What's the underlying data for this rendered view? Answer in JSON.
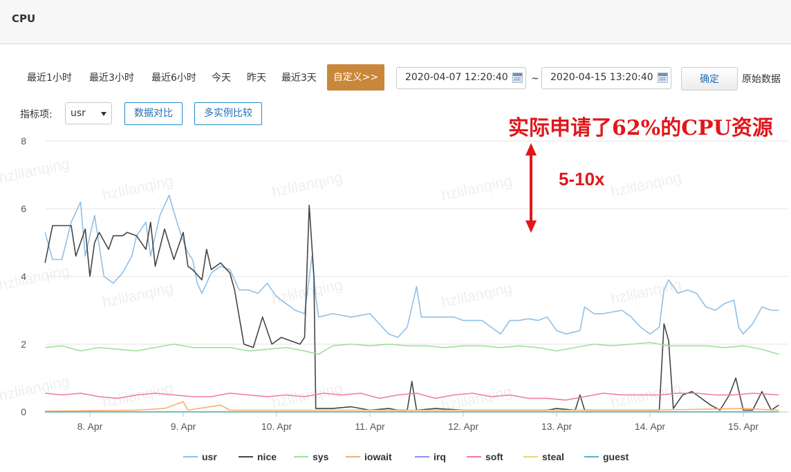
{
  "header": {
    "title": "CPU"
  },
  "toolbar": {
    "ranges": [
      "最近1小时",
      "最近3小时",
      "最近6小时",
      "今天",
      "昨天",
      "最近3天"
    ],
    "custom_label": "自定义>>",
    "start_date": "2020-04-07 12:20:40",
    "end_date": "2020-04-15 13:20:40",
    "separator": "~",
    "confirm_label": "确定",
    "raw_data_label": "原始数据"
  },
  "metric_bar": {
    "label": "指标项:",
    "selected": "usr",
    "compare_data_label": "数据对比",
    "compare_instances_label": "多实例比较"
  },
  "annotation": {
    "text": "实际申请了62%的CPU资源",
    "multiplier": "5-10x",
    "color": "#e0161a"
  },
  "watermark": "hzlilanqing",
  "chart_data": {
    "type": "line",
    "y_ticks": [
      "0",
      "2",
      "4",
      "6",
      "8"
    ],
    "ylim": [
      0,
      8
    ],
    "x_ticks": [
      "8. Apr",
      "9. Apr",
      "10. Apr",
      "11. Apr",
      "12. Apr",
      "13. Apr",
      "14. Apr",
      "15. Apr"
    ],
    "x_range_days": [
      "2020-04-07 12:20",
      "2020-04-15 13:20"
    ],
    "grid": true,
    "legend_position": "bottom",
    "series": [
      {
        "name": "usr",
        "color": "#8fbfe6",
        "points": [
          [
            7.52,
            5.3
          ],
          [
            7.6,
            4.5
          ],
          [
            7.7,
            4.5
          ],
          [
            7.8,
            5.6
          ],
          [
            7.9,
            6.2
          ],
          [
            7.95,
            4.6
          ],
          [
            8.05,
            5.8
          ],
          [
            8.15,
            4.0
          ],
          [
            8.25,
            3.8
          ],
          [
            8.35,
            4.1
          ],
          [
            8.45,
            4.6
          ],
          [
            8.5,
            5.2
          ],
          [
            8.6,
            5.6
          ],
          [
            8.65,
            4.6
          ],
          [
            8.75,
            5.8
          ],
          [
            8.8,
            6.1
          ],
          [
            8.85,
            6.4
          ],
          [
            8.9,
            5.9
          ],
          [
            8.98,
            5.2
          ],
          [
            9.05,
            4.7
          ],
          [
            9.1,
            4.5
          ],
          [
            9.15,
            3.8
          ],
          [
            9.2,
            3.5
          ],
          [
            9.3,
            4.1
          ],
          [
            9.4,
            4.3
          ],
          [
            9.5,
            4.2
          ],
          [
            9.6,
            3.6
          ],
          [
            9.7,
            3.6
          ],
          [
            9.8,
            3.5
          ],
          [
            9.9,
            3.8
          ],
          [
            10.0,
            3.4
          ],
          [
            10.1,
            3.2
          ],
          [
            10.2,
            3.0
          ],
          [
            10.3,
            2.9
          ],
          [
            10.38,
            4.6
          ],
          [
            10.42,
            3.4
          ],
          [
            10.45,
            2.8
          ],
          [
            10.6,
            2.9
          ],
          [
            10.8,
            2.8
          ],
          [
            11.0,
            2.9
          ],
          [
            11.1,
            2.6
          ],
          [
            11.2,
            2.3
          ],
          [
            11.3,
            2.2
          ],
          [
            11.4,
            2.5
          ],
          [
            11.5,
            3.7
          ],
          [
            11.55,
            2.8
          ],
          [
            11.7,
            2.8
          ],
          [
            11.9,
            2.8
          ],
          [
            12.0,
            2.7
          ],
          [
            12.2,
            2.7
          ],
          [
            12.3,
            2.5
          ],
          [
            12.4,
            2.3
          ],
          [
            12.5,
            2.7
          ],
          [
            12.6,
            2.7
          ],
          [
            12.7,
            2.75
          ],
          [
            12.8,
            2.7
          ],
          [
            12.9,
            2.8
          ],
          [
            13.0,
            2.4
          ],
          [
            13.1,
            2.3
          ],
          [
            13.25,
            2.4
          ],
          [
            13.3,
            3.1
          ],
          [
            13.4,
            2.9
          ],
          [
            13.5,
            2.9
          ],
          [
            13.7,
            3.0
          ],
          [
            13.8,
            2.8
          ],
          [
            13.9,
            2.5
          ],
          [
            14.0,
            2.3
          ],
          [
            14.1,
            2.5
          ],
          [
            14.15,
            3.6
          ],
          [
            14.2,
            3.9
          ],
          [
            14.3,
            3.5
          ],
          [
            14.4,
            3.6
          ],
          [
            14.5,
            3.5
          ],
          [
            14.6,
            3.1
          ],
          [
            14.7,
            3.0
          ],
          [
            14.8,
            3.2
          ],
          [
            14.9,
            3.3
          ],
          [
            14.95,
            2.5
          ],
          [
            15.0,
            2.3
          ],
          [
            15.1,
            2.6
          ],
          [
            15.2,
            3.1
          ],
          [
            15.3,
            3.0
          ],
          [
            15.38,
            3.0
          ]
        ]
      },
      {
        "name": "nice",
        "color": "#444444",
        "points": [
          [
            7.52,
            4.4
          ],
          [
            7.6,
            5.5
          ],
          [
            7.7,
            5.5
          ],
          [
            7.8,
            5.5
          ],
          [
            7.85,
            4.6
          ],
          [
            7.95,
            5.4
          ],
          [
            8.0,
            4.0
          ],
          [
            8.05,
            5.0
          ],
          [
            8.1,
            5.3
          ],
          [
            8.2,
            4.8
          ],
          [
            8.25,
            5.2
          ],
          [
            8.35,
            5.2
          ],
          [
            8.4,
            5.3
          ],
          [
            8.5,
            5.2
          ],
          [
            8.6,
            4.8
          ],
          [
            8.65,
            5.6
          ],
          [
            8.7,
            4.3
          ],
          [
            8.8,
            5.4
          ],
          [
            8.9,
            4.5
          ],
          [
            9.0,
            5.3
          ],
          [
            9.05,
            4.3
          ],
          [
            9.1,
            4.2
          ],
          [
            9.2,
            3.9
          ],
          [
            9.25,
            4.8
          ],
          [
            9.3,
            4.2
          ],
          [
            9.4,
            4.4
          ],
          [
            9.5,
            4.1
          ],
          [
            9.55,
            3.6
          ],
          [
            9.6,
            2.8
          ],
          [
            9.65,
            2.0
          ],
          [
            9.75,
            1.9
          ],
          [
            9.85,
            2.8
          ],
          [
            9.95,
            2.0
          ],
          [
            10.05,
            2.2
          ],
          [
            10.15,
            2.1
          ],
          [
            10.25,
            2.0
          ],
          [
            10.3,
            2.2
          ],
          [
            10.35,
            6.1
          ],
          [
            10.4,
            4.0
          ],
          [
            10.42,
            0.1
          ],
          [
            10.6,
            0.1
          ],
          [
            10.8,
            0.15
          ],
          [
            11.0,
            0.05
          ],
          [
            11.2,
            0.1
          ],
          [
            11.3,
            0.05
          ],
          [
            11.4,
            0.05
          ],
          [
            11.45,
            0.9
          ],
          [
            11.5,
            0.05
          ],
          [
            11.7,
            0.1
          ],
          [
            12.0,
            0.05
          ],
          [
            12.3,
            0.05
          ],
          [
            12.6,
            0.05
          ],
          [
            12.9,
            0.05
          ],
          [
            13.0,
            0.1
          ],
          [
            13.2,
            0.05
          ],
          [
            13.25,
            0.5
          ],
          [
            13.3,
            0.05
          ],
          [
            13.6,
            0.05
          ],
          [
            13.9,
            0.05
          ],
          [
            14.0,
            0.05
          ],
          [
            14.1,
            0.05
          ],
          [
            14.15,
            2.6
          ],
          [
            14.2,
            2.1
          ],
          [
            14.25,
            0.1
          ],
          [
            14.35,
            0.5
          ],
          [
            14.45,
            0.6
          ],
          [
            14.55,
            0.4
          ],
          [
            14.65,
            0.2
          ],
          [
            14.75,
            0.05
          ],
          [
            14.85,
            0.5
          ],
          [
            14.92,
            1.0
          ],
          [
            15.0,
            0.05
          ],
          [
            15.1,
            0.05
          ],
          [
            15.2,
            0.6
          ],
          [
            15.3,
            0.05
          ],
          [
            15.38,
            0.2
          ]
        ]
      },
      {
        "name": "sys",
        "color": "#9ee09e",
        "points": [
          [
            7.52,
            1.9
          ],
          [
            7.7,
            1.95
          ],
          [
            7.9,
            1.8
          ],
          [
            8.1,
            1.9
          ],
          [
            8.3,
            1.85
          ],
          [
            8.5,
            1.8
          ],
          [
            8.7,
            1.9
          ],
          [
            8.9,
            2.0
          ],
          [
            9.1,
            1.9
          ],
          [
            9.3,
            1.9
          ],
          [
            9.5,
            1.9
          ],
          [
            9.7,
            1.8
          ],
          [
            9.9,
            1.85
          ],
          [
            10.1,
            1.9
          ],
          [
            10.3,
            1.8
          ],
          [
            10.45,
            1.7
          ],
          [
            10.6,
            1.95
          ],
          [
            10.8,
            2.0
          ],
          [
            11.0,
            1.95
          ],
          [
            11.2,
            2.0
          ],
          [
            11.4,
            1.95
          ],
          [
            11.6,
            1.95
          ],
          [
            11.8,
            1.9
          ],
          [
            12.0,
            1.95
          ],
          [
            12.2,
            1.95
          ],
          [
            12.4,
            1.9
          ],
          [
            12.6,
            1.95
          ],
          [
            12.8,
            1.9
          ],
          [
            13.0,
            1.8
          ],
          [
            13.2,
            1.9
          ],
          [
            13.4,
            2.0
          ],
          [
            13.6,
            1.95
          ],
          [
            13.8,
            2.0
          ],
          [
            14.0,
            2.05
          ],
          [
            14.2,
            1.95
          ],
          [
            14.4,
            1.95
          ],
          [
            14.6,
            1.95
          ],
          [
            14.8,
            1.9
          ],
          [
            15.0,
            1.95
          ],
          [
            15.2,
            1.85
          ],
          [
            15.38,
            1.7
          ]
        ]
      },
      {
        "name": "iowait",
        "color": "#f5b06a",
        "points": [
          [
            7.52,
            0.02
          ],
          [
            8.5,
            0.05
          ],
          [
            8.8,
            0.1
          ],
          [
            9.0,
            0.3
          ],
          [
            9.05,
            0.05
          ],
          [
            9.4,
            0.2
          ],
          [
            9.5,
            0.05
          ],
          [
            10.0,
            0.05
          ],
          [
            11.0,
            0.05
          ],
          [
            12.0,
            0.05
          ],
          [
            13.0,
            0.05
          ],
          [
            14.0,
            0.05
          ],
          [
            15.0,
            0.1
          ],
          [
            15.38,
            0.05
          ]
        ]
      },
      {
        "name": "irq",
        "color": "#8c8cf0",
        "points": [
          [
            7.52,
            0.0
          ],
          [
            15.38,
            0.0
          ]
        ]
      },
      {
        "name": "soft",
        "color": "#f07aa0",
        "points": [
          [
            7.52,
            0.55
          ],
          [
            7.7,
            0.5
          ],
          [
            7.9,
            0.55
          ],
          [
            8.1,
            0.45
          ],
          [
            8.3,
            0.4
          ],
          [
            8.5,
            0.5
          ],
          [
            8.7,
            0.55
          ],
          [
            8.9,
            0.5
          ],
          [
            9.1,
            0.45
          ],
          [
            9.3,
            0.45
          ],
          [
            9.5,
            0.55
          ],
          [
            9.7,
            0.5
          ],
          [
            9.9,
            0.45
          ],
          [
            10.1,
            0.5
          ],
          [
            10.3,
            0.45
          ],
          [
            10.5,
            0.55
          ],
          [
            10.7,
            0.5
          ],
          [
            10.9,
            0.55
          ],
          [
            11.1,
            0.4
          ],
          [
            11.3,
            0.5
          ],
          [
            11.5,
            0.55
          ],
          [
            11.7,
            0.4
          ],
          [
            11.9,
            0.5
          ],
          [
            12.1,
            0.55
          ],
          [
            12.3,
            0.45
          ],
          [
            12.5,
            0.5
          ],
          [
            12.7,
            0.4
          ],
          [
            12.9,
            0.4
          ],
          [
            13.1,
            0.35
          ],
          [
            13.3,
            0.45
          ],
          [
            13.5,
            0.55
          ],
          [
            13.7,
            0.5
          ],
          [
            13.9,
            0.5
          ],
          [
            14.1,
            0.5
          ],
          [
            14.3,
            0.55
          ],
          [
            14.5,
            0.55
          ],
          [
            14.7,
            0.5
          ],
          [
            14.9,
            0.5
          ],
          [
            15.1,
            0.55
          ],
          [
            15.38,
            0.5
          ]
        ]
      },
      {
        "name": "steal",
        "color": "#e8d870",
        "points": [
          [
            7.52,
            0.0
          ],
          [
            15.38,
            0.0
          ]
        ]
      },
      {
        "name": "guest",
        "color": "#50b8b8",
        "points": [
          [
            7.52,
            0.0
          ],
          [
            15.38,
            0.0
          ]
        ]
      }
    ]
  }
}
